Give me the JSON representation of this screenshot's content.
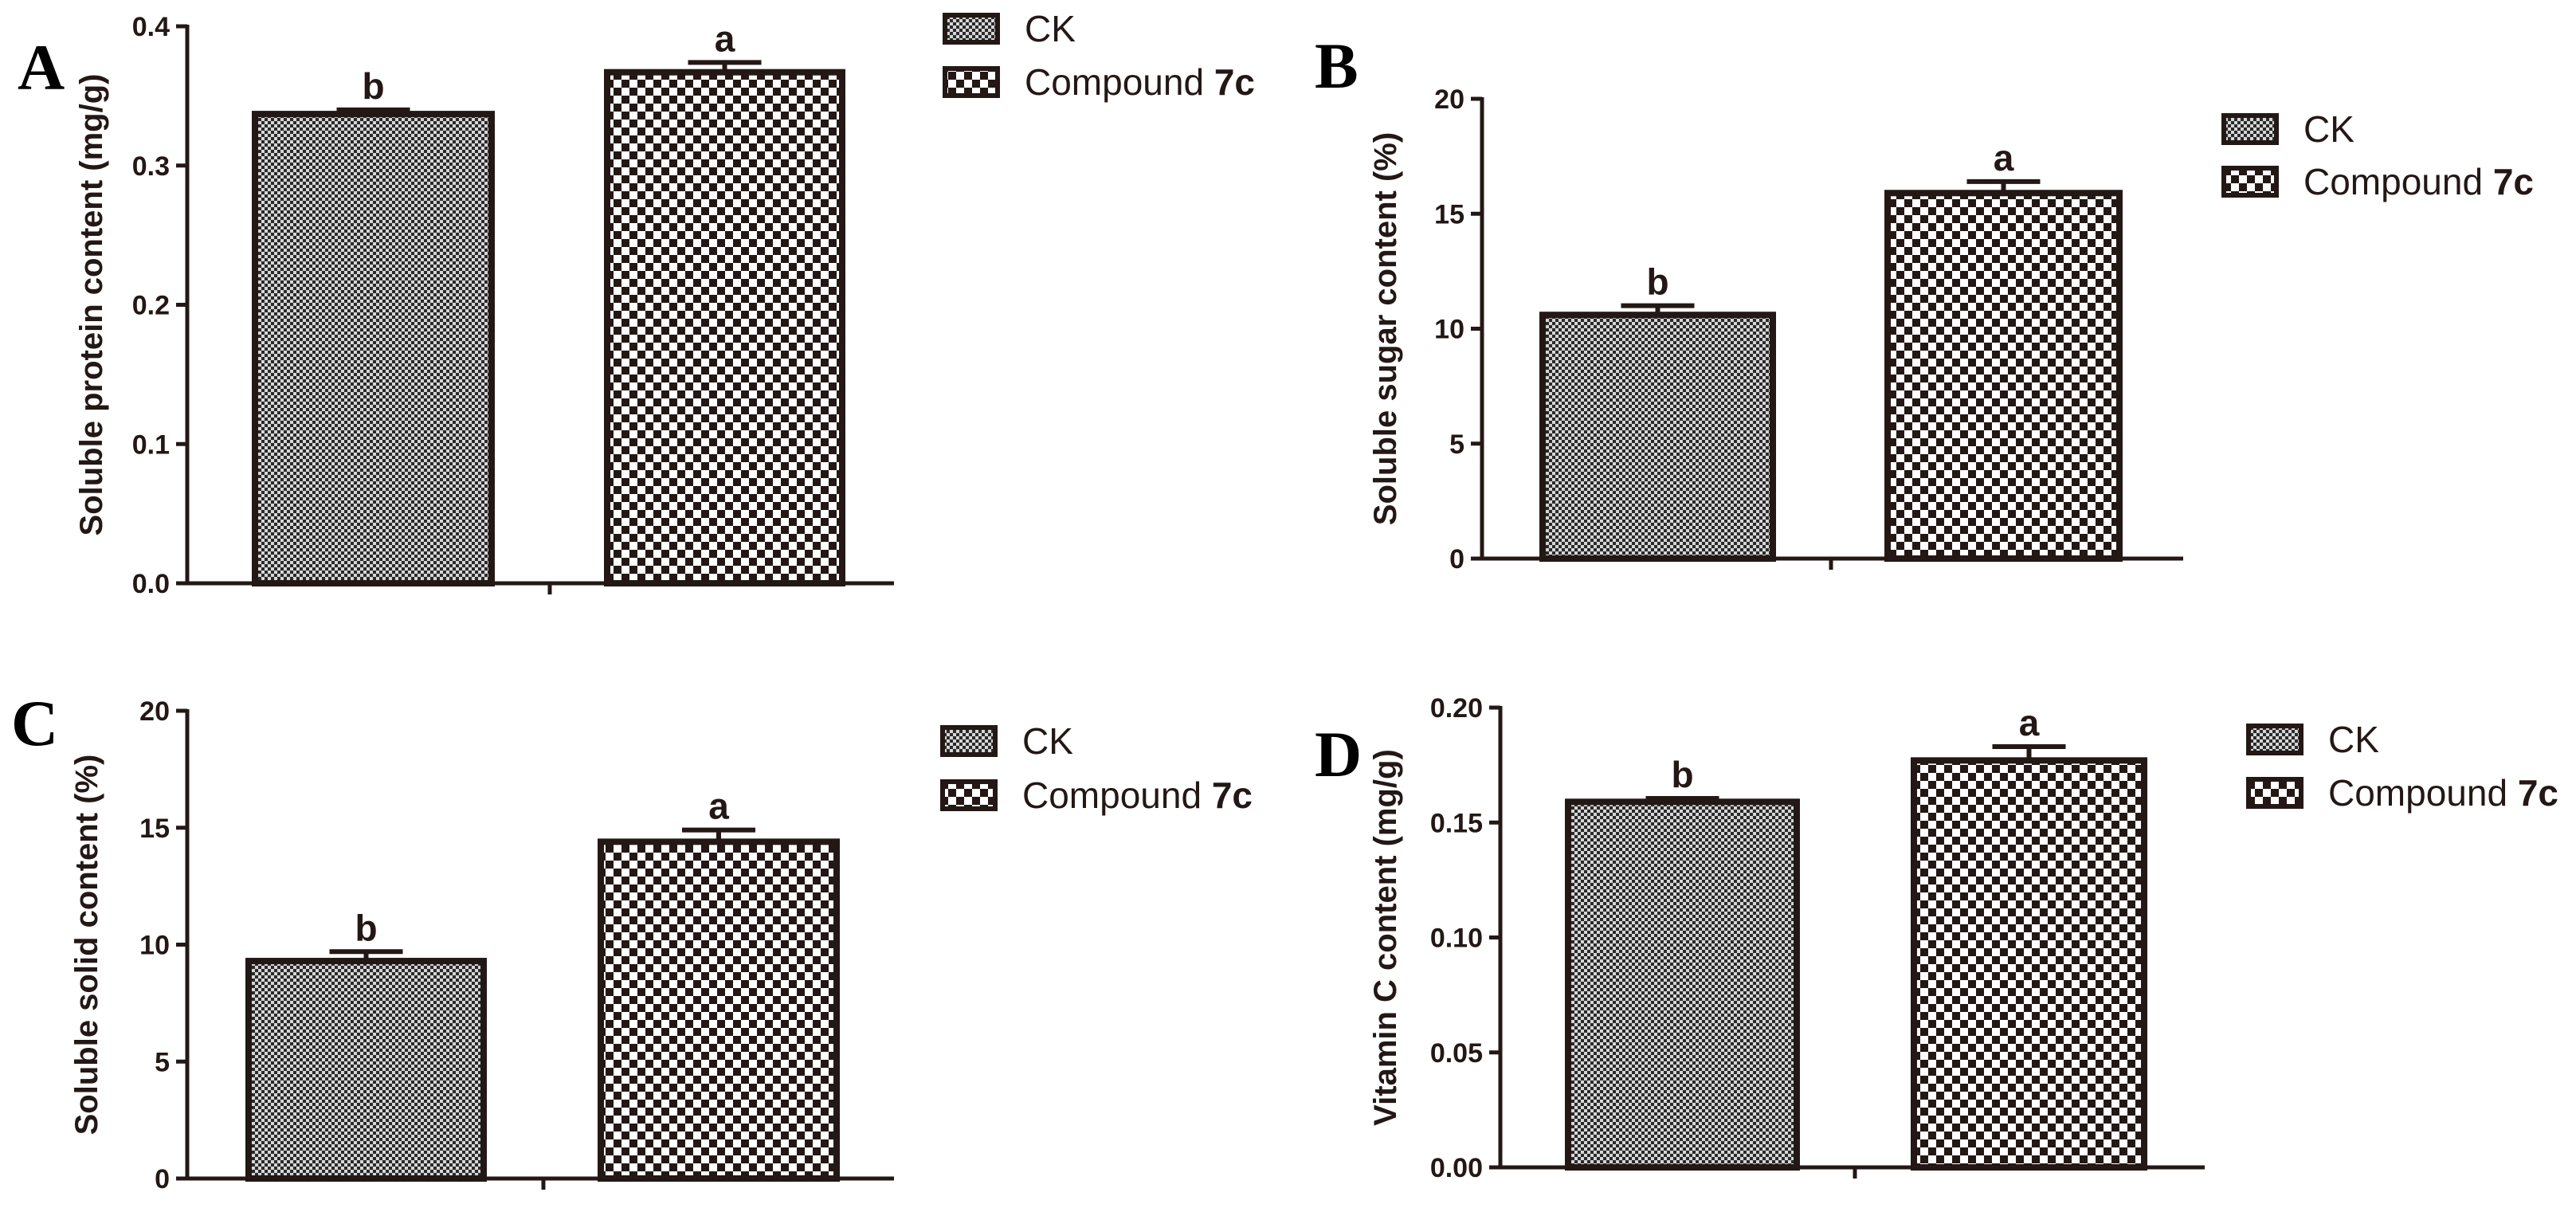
{
  "chart_data": [
    {
      "type": "bar",
      "panel": "A",
      "ylabel": "Soluble protein content (mg/g)",
      "ylim": [
        0,
        0.4
      ],
      "yticks": [
        0.0,
        0.1,
        0.2,
        0.3,
        0.4
      ],
      "ytick_labels": [
        "0.0",
        "0.1",
        "0.2",
        "0.3",
        "0.4"
      ],
      "categories": [
        "CK",
        "Compound 7c"
      ],
      "values": [
        0.337,
        0.367
      ],
      "errors": [
        0.003,
        0.007
      ],
      "significance": [
        "b",
        "a"
      ],
      "legend": [
        {
          "label": "CK"
        },
        {
          "label": "Compound ",
          "bold": "7c"
        }
      ]
    },
    {
      "type": "bar",
      "panel": "B",
      "ylabel": "Soluble sugar content (%)",
      "ylim": [
        0,
        20
      ],
      "yticks": [
        0,
        5,
        10,
        15,
        20
      ],
      "ytick_labels": [
        "0",
        "5",
        "10",
        "15",
        "20"
      ],
      "categories": [
        "CK",
        "Compound 7c"
      ],
      "values": [
        10.6,
        15.9
      ],
      "errors": [
        0.4,
        0.5
      ],
      "significance": [
        "b",
        "a"
      ],
      "legend": [
        {
          "label": "CK"
        },
        {
          "label": "Compound ",
          "bold": "7c"
        }
      ]
    },
    {
      "type": "bar",
      "panel": "C",
      "ylabel": "Soluble solid content (%)",
      "ylim": [
        0,
        20
      ],
      "yticks": [
        0,
        5,
        10,
        15,
        20
      ],
      "ytick_labels": [
        "0",
        "5",
        "10",
        "15",
        "20"
      ],
      "categories": [
        "CK",
        "Compound 7c"
      ],
      "values": [
        9.3,
        14.4
      ],
      "errors": [
        0.4,
        0.5
      ],
      "significance": [
        "b",
        "a"
      ],
      "legend": [
        {
          "label": "CK"
        },
        {
          "label": "Compound ",
          "bold": "7c"
        }
      ]
    },
    {
      "type": "bar",
      "panel": "D",
      "ylabel": "Vitamin C content (mg/g)",
      "ylim": [
        0,
        0.2
      ],
      "yticks": [
        0.0,
        0.05,
        0.1,
        0.15,
        0.2
      ],
      "ytick_labels": [
        "0.00",
        "0.05",
        "0.10",
        "0.15",
        "0.20"
      ],
      "categories": [
        "CK",
        "Compound 7c"
      ],
      "values": [
        0.159,
        0.177
      ],
      "errors": [
        0.0015,
        0.006
      ],
      "significance": [
        "b",
        "a"
      ],
      "legend": [
        {
          "label": "CK"
        },
        {
          "label": "Compound ",
          "bold": "7c"
        }
      ]
    }
  ],
  "colors": {
    "ink": "#231815",
    "fine_pattern_dark": "#2a2a2a",
    "fine_pattern_light": "#d6d6d6",
    "checker_dark": "#231815",
    "checker_light": "#ffffff"
  }
}
